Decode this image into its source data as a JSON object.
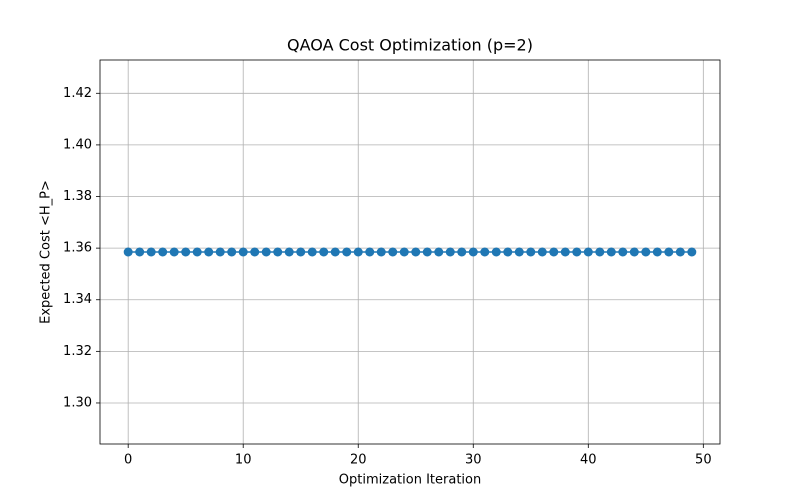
{
  "chart_data": {
    "type": "line",
    "title": "QAOA Cost Optimization (p=2)",
    "x_label": "Optimization Iteration",
    "y_label": "Expected Cost <H_P>",
    "x": [
      0,
      1,
      2,
      3,
      4,
      5,
      6,
      7,
      8,
      9,
      10,
      11,
      12,
      13,
      14,
      15,
      16,
      17,
      18,
      19,
      20,
      21,
      22,
      23,
      24,
      25,
      26,
      27,
      28,
      29,
      30,
      31,
      32,
      33,
      34,
      35,
      36,
      37,
      38,
      39,
      40,
      41,
      42,
      43,
      44,
      45,
      46,
      47,
      48,
      49
    ],
    "series": [
      {
        "color": "#1f77b4",
        "marker": "o",
        "values": [
          1.3585,
          1.3585,
          1.3585,
          1.3585,
          1.3585,
          1.3585,
          1.3585,
          1.3585,
          1.3585,
          1.3585,
          1.3585,
          1.3585,
          1.3585,
          1.3585,
          1.3585,
          1.3585,
          1.3585,
          1.3585,
          1.3585,
          1.3585,
          1.3585,
          1.3585,
          1.3585,
          1.3585,
          1.3585,
          1.3585,
          1.3585,
          1.3585,
          1.3585,
          1.3585,
          1.3585,
          1.3585,
          1.3585,
          1.3585,
          1.3585,
          1.3585,
          1.3585,
          1.3585,
          1.3585,
          1.3585,
          1.3585,
          1.3585,
          1.3585,
          1.3585,
          1.3585,
          1.3585,
          1.3585,
          1.3585,
          1.3585,
          1.3585
        ]
      }
    ],
    "xlim": [
      -2.45,
      51.45
    ],
    "xticks": [
      0,
      10,
      20,
      30,
      40,
      50
    ],
    "ylim": [
      1.2841,
      1.4329
    ],
    "yticks": [
      {
        "value": 1.3,
        "label": "1.30"
      },
      {
        "value": 1.32,
        "label": "1.32"
      },
      {
        "value": 1.34,
        "label": "1.34"
      },
      {
        "value": 1.36,
        "label": "1.36"
      },
      {
        "value": 1.38,
        "label": "1.38"
      },
      {
        "value": 1.4,
        "label": "1.40"
      },
      {
        "value": 1.42,
        "label": "1.42"
      }
    ],
    "grid": true
  }
}
